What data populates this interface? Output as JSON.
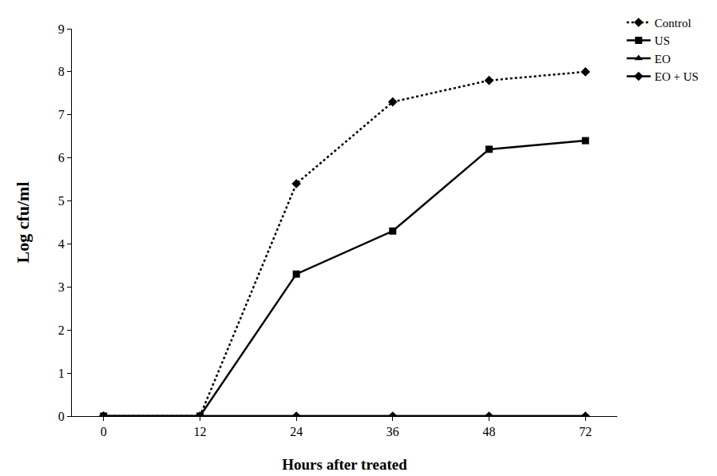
{
  "chart_data": {
    "type": "line",
    "x_label": "Hours after treated",
    "y_label": "Log cfu/ml",
    "categories": [
      "0",
      "12",
      "24",
      "36",
      "48",
      "72"
    ],
    "series": [
      {
        "name": "Control",
        "color": "#000000",
        "marker": "diamond",
        "line_style": "dot",
        "values": [
          0,
          0,
          5.4,
          7.3,
          7.8,
          8.0
        ]
      },
      {
        "name": "US",
        "color": "#000000",
        "marker": "square",
        "line_style": "solid",
        "values": [
          0,
          0,
          3.3,
          4.3,
          6.2,
          6.4
        ]
      },
      {
        "name": "EO",
        "color": "#000000",
        "marker": "triangle-up",
        "line_style": "solid",
        "values": [
          0,
          0,
          0,
          0,
          0,
          0
        ]
      },
      {
        "name": "EO + US",
        "color": "#000000",
        "marker": "diamond",
        "line_style": "solid",
        "values": [
          0,
          0,
          0,
          0,
          0,
          0
        ]
      }
    ],
    "ylim": [
      0,
      9
    ],
    "yticks": [
      0,
      1,
      2,
      3,
      4,
      5,
      6,
      7,
      8,
      9
    ],
    "grid": false,
    "legend": "top right"
  }
}
